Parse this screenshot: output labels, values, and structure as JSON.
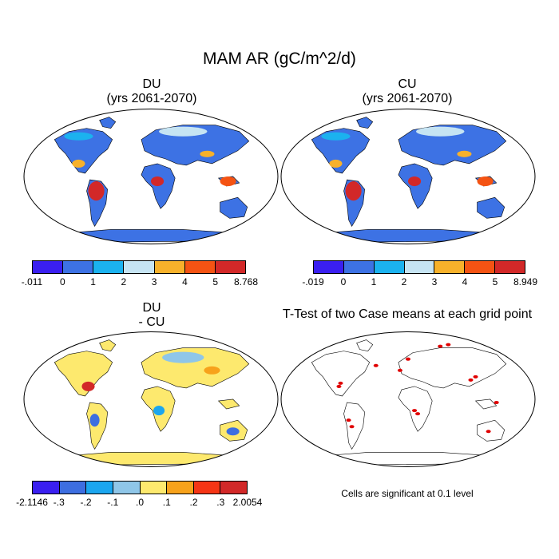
{
  "title": "MAM AR (gC/m^2/d)",
  "panels": [
    {
      "id": "du",
      "title_line1": "DU",
      "title_line2": "(yrs 2061-2070)"
    },
    {
      "id": "cu",
      "title_line1": "CU",
      "title_line2": "(yrs 2061-2070)"
    },
    {
      "id": "diff",
      "title_line1": "DU",
      "title_line2": "- CU"
    },
    {
      "id": "ttest",
      "title_line1": "T-Test of two Case means at each grid point",
      "title_line2": ""
    }
  ],
  "colorbars": {
    "du": {
      "colors": [
        "#3a1ff0",
        "#3d72e4",
        "#1bb2ef",
        "#c6e4f3",
        "#f7b12b",
        "#f45313",
        "#d22828"
      ],
      "labels": [
        "-.011",
        "0",
        "1",
        "2",
        "3",
        "4",
        "5",
        "8.768"
      ]
    },
    "cu": {
      "colors": [
        "#3a1ff0",
        "#3d72e4",
        "#1bb2ef",
        "#c6e4f3",
        "#f7b12b",
        "#f45313",
        "#d22828"
      ],
      "labels": [
        "-.019",
        "0",
        "1",
        "2",
        "3",
        "4",
        "5",
        "8.949"
      ]
    },
    "diff": {
      "colors": [
        "#3a1ff0",
        "#3d6ee0",
        "#1ba6ef",
        "#8fc6e8",
        "#fde96e",
        "#f7a21b",
        "#f53515",
        "#d22828"
      ],
      "labels": [
        "-2.1146",
        "-.3",
        "-.2",
        "-.1",
        ".0",
        ".1",
        ".2",
        ".3",
        "2.0054"
      ]
    }
  },
  "note": "Cells are significant at 0.1 level",
  "colors": {
    "ocean": "#ffffff",
    "du_land": "#3d72e4",
    "diff_land": "#fde96e",
    "significant": "#e00000",
    "coast": "#000000"
  }
}
